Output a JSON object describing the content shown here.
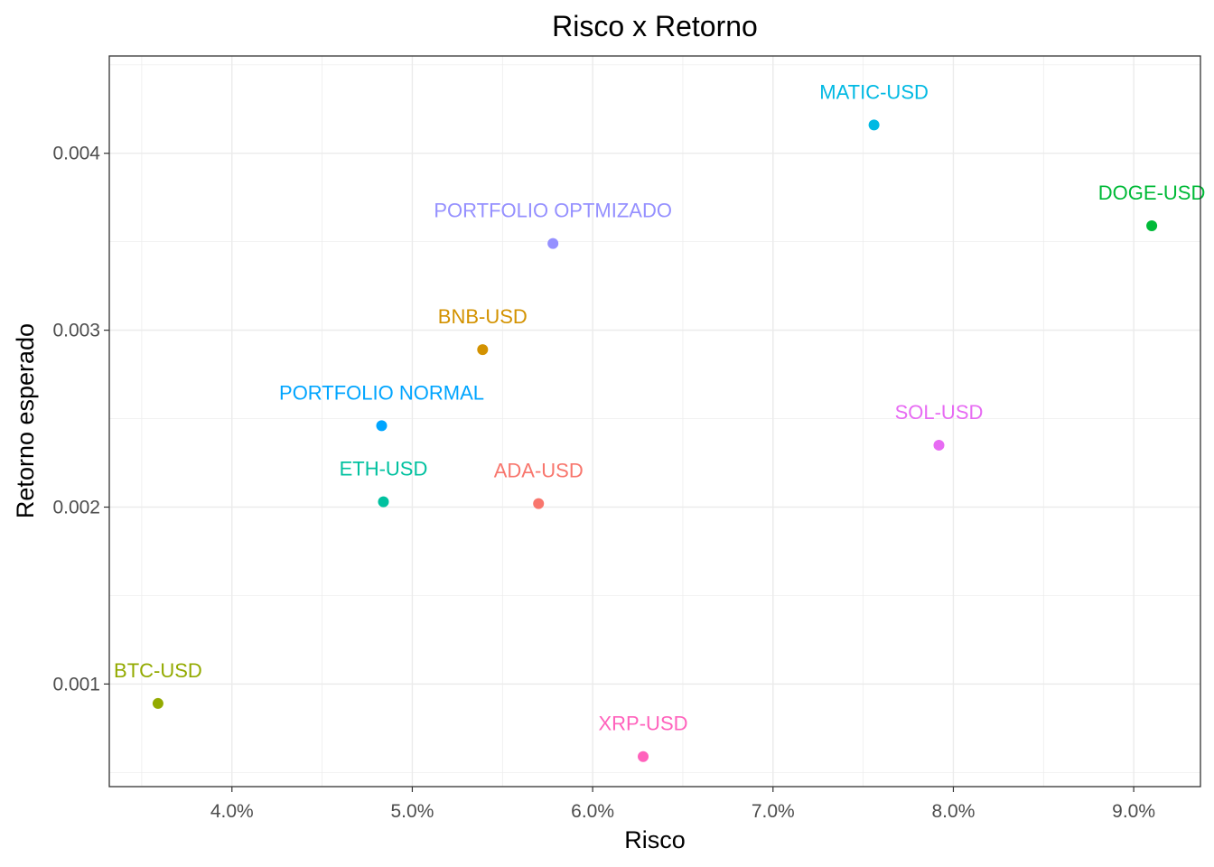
{
  "chart_data": {
    "type": "scatter",
    "title": "Risco x Retorno",
    "xlabel": "Risco",
    "ylabel": "Retorno esperado",
    "xlim": [
      0.0332,
      0.0937
    ],
    "ylim": [
      0.00042,
      0.00455
    ],
    "x_ticks": [
      0.04,
      0.05,
      0.06,
      0.07,
      0.08,
      0.09
    ],
    "x_tick_labels": [
      "4.0%",
      "5.0%",
      "6.0%",
      "7.0%",
      "8.0%",
      "9.0%"
    ],
    "y_ticks": [
      0.001,
      0.002,
      0.003,
      0.004
    ],
    "y_tick_labels": [
      "0.001",
      "0.002",
      "0.003",
      "0.004"
    ],
    "grid": true,
    "legend": "none",
    "points": [
      {
        "label": "ADA-USD",
        "x": 0.057,
        "y": 0.00202,
        "color": "#F8766D"
      },
      {
        "label": "BNB-USD",
        "x": 0.0539,
        "y": 0.00289,
        "color": "#D39200"
      },
      {
        "label": "BTC-USD",
        "x": 0.0359,
        "y": 0.00089,
        "color": "#93AA00"
      },
      {
        "label": "DOGE-USD",
        "x": 0.091,
        "y": 0.00359,
        "color": "#00BA38"
      },
      {
        "label": "ETH-USD",
        "x": 0.0484,
        "y": 0.00203,
        "color": "#00C19F"
      },
      {
        "label": "MATIC-USD",
        "x": 0.0756,
        "y": 0.00416,
        "color": "#00B9E3"
      },
      {
        "label": "PORTFOLIO NORMAL",
        "x": 0.0483,
        "y": 0.00246,
        "color": "#00A5FF"
      },
      {
        "label": "PORTFOLIO OPTMIZADO",
        "x": 0.0578,
        "y": 0.00349,
        "color": "#9590FF"
      },
      {
        "label": "SOL-USD",
        "x": 0.0792,
        "y": 0.00235,
        "color": "#E76BF3"
      },
      {
        "label": "XRP-USD",
        "x": 0.0628,
        "y": 0.00059,
        "color": "#FF62BC"
      }
    ]
  }
}
